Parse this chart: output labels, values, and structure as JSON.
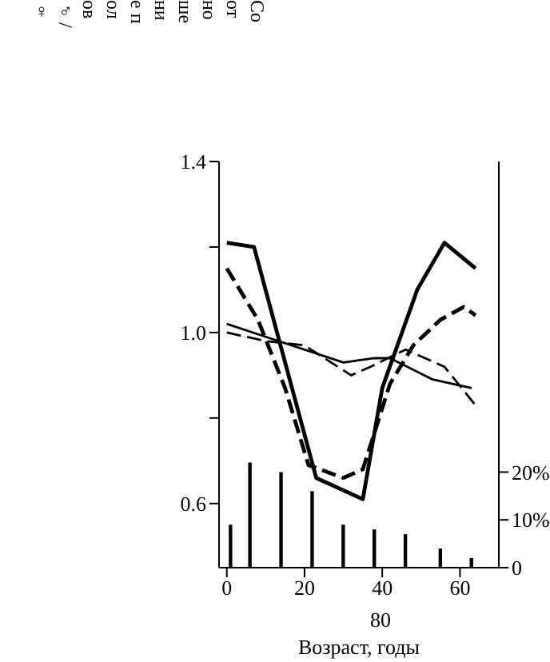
{
  "chart_data": {
    "type": "line",
    "xlabel": "Возраст, годы",
    "annotations": [
      "Соотношение полов ♂/♀",
      "80"
    ],
    "xlim": [
      -2,
      70
    ],
    "xticks": [
      0,
      20,
      40,
      60
    ],
    "ylim": [
      0.45,
      1.4
    ],
    "yticks": [
      {
        "value": 0.6,
        "label": "0.6"
      },
      {
        "value": 0.8,
        "label": null
      },
      {
        "value": 1.0,
        "label": "1.0"
      },
      {
        "value": 1.2,
        "label": null
      },
      {
        "value": 1.4,
        "label": "1.4"
      }
    ],
    "y2lim": [
      0,
      85
    ],
    "y2ticks": [
      0,
      {
        "value": 10,
        "label": "10%"
      },
      {
        "value": 20,
        "label": "20%"
      }
    ],
    "legend": false,
    "grid": false,
    "marker": "none",
    "series": [
      {
        "type": "bar",
        "axis": "y2",
        "color": "#000000",
        "x": [
          1,
          6,
          14,
          22,
          30,
          38,
          46,
          55,
          63
        ],
        "values": [
          9,
          22,
          20,
          16,
          9,
          8,
          7,
          4,
          2
        ]
      },
      {
        "color": "#000000",
        "line_style": "solid",
        "x": [
          0,
          7,
          23,
          35,
          40,
          49,
          56,
          64
        ],
        "values": [
          1.21,
          1.2,
          0.66,
          0.61,
          0.87,
          1.1,
          1.21,
          1.15
        ]
      },
      {
        "color": "#000000",
        "line_style": "dashed",
        "x": [
          0,
          8,
          15,
          21,
          30,
          35,
          42,
          48,
          55,
          61,
          64
        ],
        "values": [
          1.15,
          1.03,
          0.87,
          0.69,
          0.66,
          0.68,
          0.88,
          0.97,
          1.03,
          1.06,
          1.04
        ]
      },
      {
        "color": "#000000",
        "line_style": "solid",
        "x": [
          0,
          10,
          30,
          38,
          42,
          53,
          63
        ],
        "values": [
          1.02,
          0.99,
          0.93,
          0.94,
          0.94,
          0.89,
          0.87
        ]
      },
      {
        "color": "#000000",
        "line_style": "dashed",
        "x": [
          0,
          10,
          20,
          32,
          37,
          46,
          56,
          64
        ],
        "values": [
          1.0,
          0.98,
          0.97,
          0.9,
          0.92,
          0.96,
          0.92,
          0.83
        ]
      }
    ]
  }
}
